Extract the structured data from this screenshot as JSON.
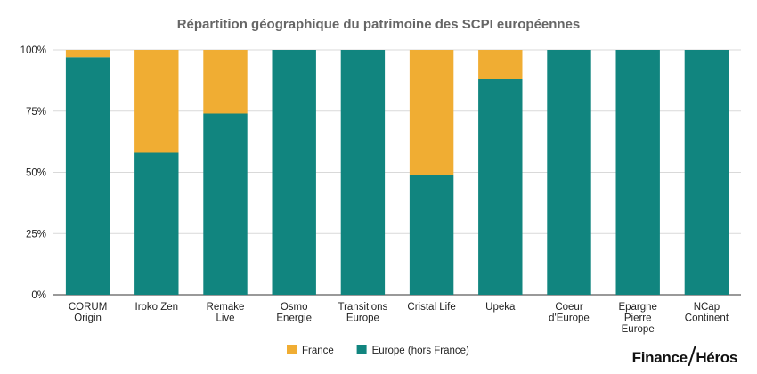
{
  "chart_data": {
    "type": "bar",
    "stacked": true,
    "title": "Répartition géographique du patrimoine des SCPI européennes",
    "categories": [
      [
        "CORUM",
        "Origin"
      ],
      [
        "Iroko Zen"
      ],
      [
        "Remake",
        "Live"
      ],
      [
        "Osmo",
        "Energie"
      ],
      [
        "Transitions",
        "Europe"
      ],
      [
        "Cristal Life"
      ],
      [
        "Upeka"
      ],
      [
        "Coeur",
        "d'Europe"
      ],
      [
        "Epargne",
        "Pierre",
        "Europe"
      ],
      [
        "NCap",
        "Continent"
      ]
    ],
    "series": [
      {
        "name": "Europe (hors France)",
        "color": "#11857f",
        "values": [
          97,
          58,
          74,
          100,
          100,
          49,
          88,
          100,
          100,
          100
        ]
      },
      {
        "name": "France",
        "color": "#f0ad33",
        "values": [
          3,
          42,
          26,
          0,
          0,
          51,
          12,
          0,
          0,
          0
        ]
      }
    ],
    "y_ticks": [
      "0%",
      "25%",
      "50%",
      "75%",
      "100%"
    ],
    "ylim": [
      0,
      100
    ],
    "grid": true,
    "legend_position": "bottom-center",
    "legend_order": [
      "France",
      "Europe (hors France)"
    ]
  },
  "brand": {
    "left": "Finance",
    "right": "Héros"
  }
}
